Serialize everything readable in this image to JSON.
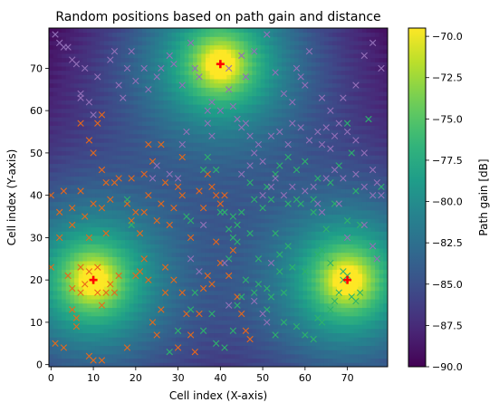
{
  "chart_data": {
    "type": "heatmap",
    "title": "Random positions based on path gain and distance",
    "xlabel": "Cell index (X-axis)",
    "ylabel": "Cell index (Y-axis)",
    "colorbar_label": "Path gain [dB]",
    "colormap": "viridis",
    "grid": false,
    "xlim": [
      -0.5,
      79.5
    ],
    "ylim": [
      -0.5,
      79.5
    ],
    "clim": [
      -90,
      -69.5
    ],
    "x_ticks": [
      0,
      10,
      20,
      30,
      40,
      50,
      60,
      70
    ],
    "x_tick_labels": [
      "0",
      "10",
      "20",
      "30",
      "40",
      "50",
      "60",
      "70"
    ],
    "y_ticks": [
      0,
      10,
      20,
      30,
      40,
      50,
      60,
      70
    ],
    "y_tick_labels": [
      "0",
      "10",
      "20",
      "30",
      "40",
      "50",
      "60",
      "70"
    ],
    "colorbar_ticks": [
      -70,
      -72.5,
      -75,
      -77.5,
      -80,
      -82.5,
      -85,
      -87.5,
      -90
    ],
    "colorbar_tick_labels": [
      "−70.0",
      "−72.5",
      "−75.0",
      "−77.5",
      "−80.0",
      "−82.5",
      "−85.0",
      "−87.5",
      "−90.0"
    ],
    "transmitters": {
      "marker": "+",
      "color": "#ff0000",
      "points": [
        [
          10,
          20
        ],
        [
          40,
          71
        ],
        [
          70,
          20
        ]
      ]
    },
    "series": [
      {
        "marker": "x",
        "color": "#e8681a",
        "points": [
          [
            1,
            5
          ],
          [
            3,
            4
          ],
          [
            4,
            21
          ],
          [
            5,
            18
          ],
          [
            5,
            13
          ],
          [
            6,
            11
          ],
          [
            6,
            9
          ],
          [
            7,
            17
          ],
          [
            7,
            23
          ],
          [
            8,
            19
          ],
          [
            9,
            22
          ],
          [
            9,
            2
          ],
          [
            10,
            1
          ],
          [
            11,
            17
          ],
          [
            11,
            23
          ],
          [
            12,
            14
          ],
          [
            12,
            1
          ],
          [
            13,
            17
          ],
          [
            14,
            19
          ],
          [
            15,
            17
          ],
          [
            16,
            21
          ],
          [
            18,
            4
          ],
          [
            20,
            21
          ],
          [
            21,
            22
          ],
          [
            22,
            25
          ],
          [
            23,
            20
          ],
          [
            24,
            10
          ],
          [
            25,
            7
          ],
          [
            26,
            13
          ],
          [
            27,
            17
          ],
          [
            27,
            23
          ],
          [
            29,
            20
          ],
          [
            30,
            4
          ],
          [
            31,
            17
          ],
          [
            32,
            12
          ],
          [
            33,
            7
          ],
          [
            34,
            3
          ],
          [
            35,
            12
          ],
          [
            36,
            18
          ],
          [
            37,
            21
          ],
          [
            38,
            19
          ],
          [
            39,
            29
          ],
          [
            40,
            24
          ],
          [
            40,
            38
          ],
          [
            41,
            40
          ],
          [
            42,
            21
          ],
          [
            43,
            27
          ],
          [
            44,
            16
          ],
          [
            45,
            12
          ],
          [
            46,
            8
          ],
          [
            47,
            6
          ],
          [
            2,
            30
          ],
          [
            3,
            41
          ],
          [
            5,
            33
          ],
          [
            7,
            41
          ],
          [
            8,
            35
          ],
          [
            9,
            30
          ],
          [
            10,
            38
          ],
          [
            12,
            37
          ],
          [
            13,
            31
          ],
          [
            14,
            39
          ],
          [
            15,
            43
          ],
          [
            18,
            38
          ],
          [
            19,
            34
          ],
          [
            20,
            36
          ],
          [
            21,
            31
          ],
          [
            22,
            36
          ],
          [
            23,
            40
          ],
          [
            25,
            34
          ],
          [
            26,
            38
          ],
          [
            27,
            43
          ],
          [
            28,
            33
          ],
          [
            29,
            37
          ],
          [
            30,
            42
          ],
          [
            31,
            40
          ],
          [
            33,
            30
          ],
          [
            35,
            41
          ],
          [
            36,
            37
          ],
          [
            37,
            45
          ],
          [
            38,
            42
          ],
          [
            39,
            40
          ],
          [
            22,
            45
          ],
          [
            24,
            48
          ],
          [
            26,
            52
          ],
          [
            31,
            49
          ],
          [
            23,
            52
          ],
          [
            12,
            46
          ],
          [
            10,
            50
          ],
          [
            9,
            53
          ],
          [
            12,
            59
          ],
          [
            11,
            57
          ],
          [
            7,
            57
          ],
          [
            16,
            44
          ],
          [
            19,
            44
          ],
          [
            13,
            43
          ],
          [
            5,
            37
          ],
          [
            2,
            36
          ],
          [
            0,
            40
          ],
          [
            0,
            23
          ]
        ]
      },
      {
        "marker": "x",
        "color": "#2db36b",
        "points": [
          [
            28,
            3
          ],
          [
            30,
            8
          ],
          [
            33,
            13
          ],
          [
            34,
            17
          ],
          [
            36,
            8
          ],
          [
            38,
            12
          ],
          [
            39,
            5
          ],
          [
            41,
            4
          ],
          [
            43,
            8
          ],
          [
            44,
            14
          ],
          [
            45,
            16
          ],
          [
            48,
            17
          ],
          [
            49,
            19
          ],
          [
            51,
            18
          ],
          [
            51,
            13
          ],
          [
            53,
            7
          ],
          [
            55,
            10
          ],
          [
            58,
            9
          ],
          [
            60,
            7
          ],
          [
            62,
            6
          ],
          [
            63,
            11
          ],
          [
            64,
            10
          ],
          [
            66,
            13
          ],
          [
            67,
            15
          ],
          [
            68,
            17
          ],
          [
            69,
            22
          ],
          [
            70,
            21
          ],
          [
            71,
            16
          ],
          [
            72,
            15
          ],
          [
            73,
            17
          ],
          [
            69,
            20
          ],
          [
            66,
            24
          ],
          [
            64,
            27
          ],
          [
            60,
            22
          ],
          [
            56,
            28
          ],
          [
            53,
            31
          ],
          [
            54,
            22
          ],
          [
            52,
            16
          ],
          [
            46,
            20
          ],
          [
            42,
            25
          ],
          [
            43,
            30
          ],
          [
            44,
            33
          ],
          [
            45,
            36
          ],
          [
            47,
            43
          ],
          [
            48,
            39
          ],
          [
            51,
            42
          ],
          [
            53,
            45
          ],
          [
            54,
            47
          ],
          [
            56,
            49
          ],
          [
            58,
            46
          ],
          [
            60,
            48
          ],
          [
            63,
            44
          ],
          [
            66,
            43
          ],
          [
            68,
            47
          ],
          [
            70,
            57
          ],
          [
            71,
            50
          ],
          [
            75,
            58
          ],
          [
            78,
            42
          ],
          [
            72,
            41
          ],
          [
            59,
            38
          ],
          [
            62,
            39
          ],
          [
            43,
            35
          ],
          [
            44,
            29
          ],
          [
            42,
            32
          ],
          [
            41,
            36
          ],
          [
            33,
            34
          ],
          [
            32,
            35
          ],
          [
            40,
            36
          ],
          [
            19,
            33
          ],
          [
            18,
            39
          ],
          [
            36,
            46
          ],
          [
            37,
            49
          ],
          [
            39,
            46
          ],
          [
            56,
            38
          ],
          [
            58,
            39
          ],
          [
            62,
            36
          ],
          [
            65,
            32
          ],
          [
            67,
            38
          ],
          [
            70,
            34
          ],
          [
            73,
            33
          ],
          [
            63,
            26
          ],
          [
            54,
            26
          ],
          [
            57,
            23
          ],
          [
            55,
            17
          ],
          [
            49,
            25
          ],
          [
            47,
            31
          ],
          [
            50,
            37
          ],
          [
            52,
            39
          ]
        ]
      },
      {
        "marker": "x",
        "color": "#9370b8",
        "points": [
          [
            1,
            78
          ],
          [
            2,
            76
          ],
          [
            3,
            75
          ],
          [
            4,
            75
          ],
          [
            5,
            72
          ],
          [
            6,
            71
          ],
          [
            7,
            64
          ],
          [
            7,
            63
          ],
          [
            8,
            70
          ],
          [
            9,
            62
          ],
          [
            10,
            59
          ],
          [
            11,
            68
          ],
          [
            14,
            72
          ],
          [
            15,
            74
          ],
          [
            16,
            66
          ],
          [
            17,
            63
          ],
          [
            18,
            70
          ],
          [
            19,
            74
          ],
          [
            20,
            67
          ],
          [
            22,
            70
          ],
          [
            23,
            65
          ],
          [
            25,
            68
          ],
          [
            26,
            70
          ],
          [
            28,
            73
          ],
          [
            29,
            71
          ],
          [
            31,
            66
          ],
          [
            33,
            76
          ],
          [
            34,
            70
          ],
          [
            35,
            68
          ],
          [
            37,
            60
          ],
          [
            38,
            62
          ],
          [
            40,
            60
          ],
          [
            42,
            65
          ],
          [
            43,
            61
          ],
          [
            44,
            58
          ],
          [
            45,
            56
          ],
          [
            46,
            57
          ],
          [
            47,
            54
          ],
          [
            48,
            50
          ],
          [
            49,
            52
          ],
          [
            50,
            48
          ],
          [
            52,
            54
          ],
          [
            54,
            55
          ],
          [
            56,
            52
          ],
          [
            57,
            57
          ],
          [
            59,
            56
          ],
          [
            61,
            53
          ],
          [
            63,
            55
          ],
          [
            64,
            52
          ],
          [
            65,
            56
          ],
          [
            66,
            51
          ],
          [
            67,
            54
          ],
          [
            68,
            57
          ],
          [
            70,
            55
          ],
          [
            72,
            53
          ],
          [
            74,
            50
          ],
          [
            76,
            46
          ],
          [
            77,
            43
          ],
          [
            78,
            40
          ],
          [
            42,
            70
          ],
          [
            45,
            73
          ],
          [
            46,
            68
          ],
          [
            48,
            74
          ],
          [
            51,
            78
          ],
          [
            53,
            69
          ],
          [
            55,
            64
          ],
          [
            57,
            62
          ],
          [
            58,
            70
          ],
          [
            59,
            68
          ],
          [
            60,
            66
          ],
          [
            61,
            74
          ],
          [
            64,
            63
          ],
          [
            66,
            60
          ],
          [
            69,
            63
          ],
          [
            72,
            66
          ],
          [
            74,
            73
          ],
          [
            76,
            76
          ],
          [
            78,
            70
          ],
          [
            50,
            40
          ],
          [
            52,
            42
          ],
          [
            53,
            44
          ],
          [
            55,
            40
          ],
          [
            57,
            42
          ],
          [
            60,
            41
          ],
          [
            62,
            42
          ],
          [
            65,
            44
          ],
          [
            67,
            46
          ],
          [
            69,
            44
          ],
          [
            72,
            45
          ],
          [
            74,
            42
          ],
          [
            76,
            40
          ],
          [
            45,
            45
          ],
          [
            47,
            47
          ],
          [
            30,
            44
          ],
          [
            28,
            45
          ],
          [
            31,
            52
          ],
          [
            32,
            55
          ],
          [
            25,
            47
          ],
          [
            24,
            44
          ],
          [
            38,
            54
          ],
          [
            37,
            57
          ],
          [
            36,
            33
          ],
          [
            35,
            22
          ],
          [
            33,
            25
          ],
          [
            41,
            24
          ],
          [
            42,
            14
          ],
          [
            48,
            15
          ],
          [
            50,
            12
          ],
          [
            51,
            10
          ],
          [
            52,
            24
          ],
          [
            63,
            38
          ],
          [
            64,
            36
          ],
          [
            68,
            38
          ],
          [
            70,
            30
          ],
          [
            74,
            33
          ],
          [
            76,
            28
          ],
          [
            77,
            25
          ]
        ]
      }
    ]
  }
}
